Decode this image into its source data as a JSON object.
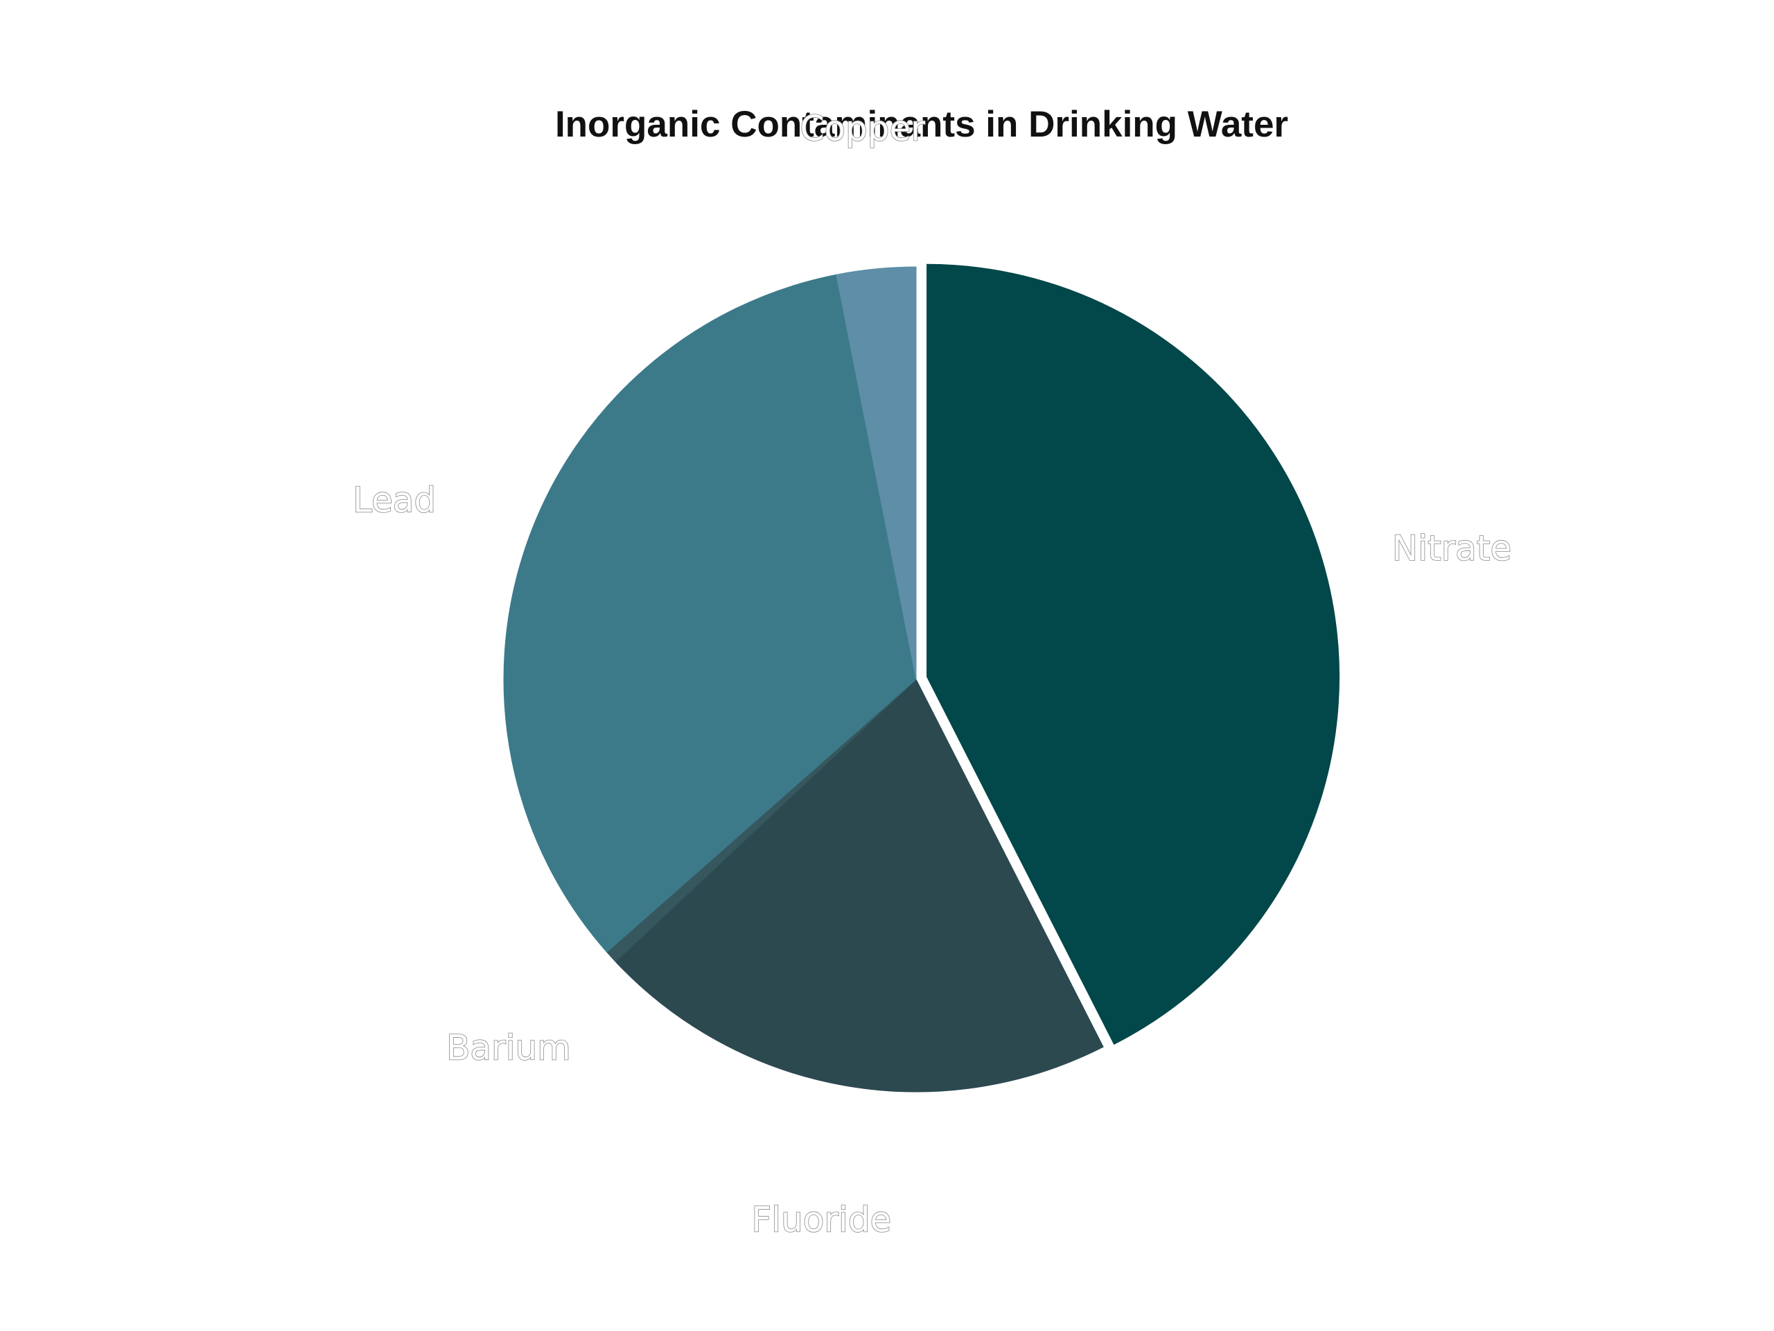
{
  "chart_data": {
    "type": "pie",
    "title": "Inorganic Contaminants in Drinking Water",
    "start_angle_deg": 0,
    "direction": "clockwise",
    "legend": "none",
    "slices": [
      {
        "label": "Nitrate",
        "value": 42.5,
        "color": "#02474A",
        "exploded": true
      },
      {
        "label": "Fluoride",
        "value": 20.5,
        "color": "#2C4950",
        "exploded": false
      },
      {
        "label": "Barium",
        "value": 0.5,
        "color": "#37575E",
        "exploded": false
      },
      {
        "label": "Lead",
        "value": 33.4,
        "color": "#3C7A8A",
        "exploded": false
      },
      {
        "label": "Copper",
        "value": 3.1,
        "color": "#5E8EA8",
        "exploded": false
      }
    ]
  }
}
